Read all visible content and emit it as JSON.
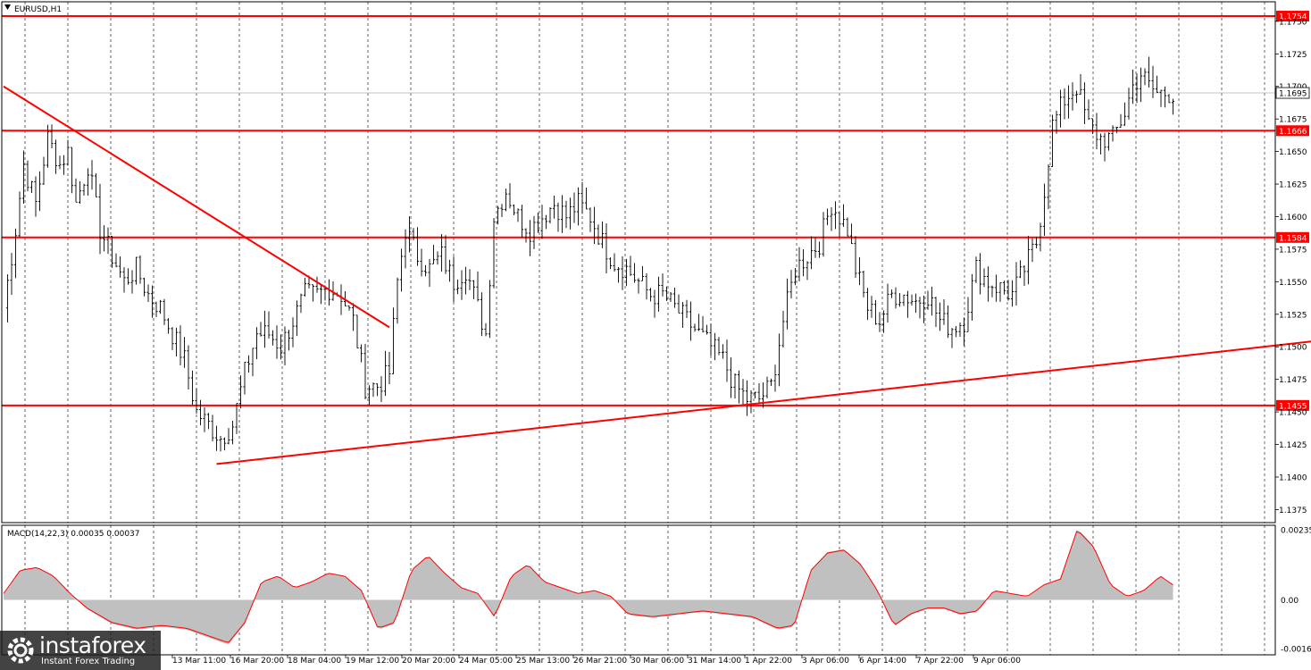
{
  "chart_title": "EURUSD,H1",
  "indicator_label": "MACD(14,22,3) 0.00035 0.00037",
  "colors": {
    "background": "#ffffff",
    "bars": "#000000",
    "levels": "#ff0000",
    "grid": "#000000",
    "macd_hist": "#c0c0c0",
    "macd_signal": "#ff0000"
  },
  "logo": {
    "name": "instaforex",
    "tagline": "Instant Forex Trading",
    "icon": "gear-logo-icon"
  },
  "chart_data": {
    "type": "candlestick",
    "symbol": "EURUSD",
    "timeframe": "H1",
    "ylim": [
      1.1365,
      1.1765
    ],
    "yticks": [
      "1.1750",
      "1.1725",
      "1.1700",
      "1.1675",
      "1.1650",
      "1.1625",
      "1.1600",
      "1.1575",
      "1.1550",
      "1.1525",
      "1.1500",
      "1.1475",
      "1.1450",
      "1.1425",
      "1.1400",
      "1.1375"
    ],
    "xticks": [
      "13 Mar 11:00",
      "16 Mar 20:00",
      "18 Mar 04:00",
      "19 Mar 12:00",
      "20 Mar 20:00",
      "24 Mar 05:00",
      "25 Mar 13:00",
      "26 Mar 21:00",
      "30 Mar 06:00",
      "31 Mar 14:00",
      "1 Apr 22:00",
      "3 Apr 06:00",
      "6 Apr 14:00",
      "7 Apr 22:00",
      "9 Apr 06:00"
    ],
    "current_price": "1.1695",
    "horizontal_levels": [
      {
        "label": "1.1754",
        "value": 1.1754
      },
      {
        "label": "1.1666",
        "value": 1.1666
      },
      {
        "label": "1.1584",
        "value": 1.1584
      },
      {
        "label": "1.1455",
        "value": 1.1455
      }
    ],
    "trendlines": [
      {
        "name": "downtrend",
        "from": [
          0,
          1.17
        ],
        "to": [
          96,
          1.1515
        ]
      },
      {
        "name": "uptrend",
        "from": [
          53,
          1.141
        ],
        "to": [
          328,
          1.1505
        ]
      }
    ],
    "price_path": [
      [
        0,
        1.153
      ],
      [
        3,
        1.159
      ],
      [
        5,
        1.164
      ],
      [
        8,
        1.161
      ],
      [
        11,
        1.166
      ],
      [
        14,
        1.164
      ],
      [
        16,
        1.165
      ],
      [
        18,
        1.161
      ],
      [
        21,
        1.164
      ],
      [
        24,
        1.159
      ],
      [
        27,
        1.157
      ],
      [
        30,
        1.155
      ],
      [
        33,
        1.156
      ],
      [
        36,
        1.154
      ],
      [
        39,
        1.153
      ],
      [
        42,
        1.151
      ],
      [
        45,
        1.149
      ],
      [
        48,
        1.145
      ],
      [
        51,
        1.144
      ],
      [
        54,
        1.143
      ],
      [
        57,
        1.144
      ],
      [
        60,
        1.148
      ],
      [
        63,
        1.151
      ],
      [
        66,
        1.151
      ],
      [
        69,
        1.15
      ],
      [
        72,
        1.152
      ],
      [
        75,
        1.154
      ],
      [
        78,
        1.154
      ],
      [
        81,
        1.1545
      ],
      [
        84,
        1.154
      ],
      [
        87,
        1.152
      ],
      [
        90,
        1.147
      ],
      [
        93,
        1.147
      ],
      [
        96,
        1.148
      ],
      [
        98,
        1.155
      ],
      [
        100,
        1.159
      ],
      [
        103,
        1.157
      ],
      [
        106,
        1.156
      ],
      [
        109,
        1.157
      ],
      [
        112,
        1.155
      ],
      [
        115,
        1.156
      ],
      [
        118,
        1.153
      ],
      [
        120,
        1.151
      ],
      [
        122,
        1.16
      ],
      [
        125,
        1.162
      ],
      [
        128,
        1.16
      ],
      [
        131,
        1.159
      ],
      [
        134,
        1.16
      ],
      [
        137,
        1.161
      ],
      [
        140,
        1.16
      ],
      [
        143,
        1.161
      ],
      [
        146,
        1.16
      ],
      [
        149,
        1.158
      ],
      [
        152,
        1.1565
      ],
      [
        155,
        1.156
      ],
      [
        158,
        1.155
      ],
      [
        161,
        1.154
      ],
      [
        164,
        1.154
      ],
      [
        167,
        1.153
      ],
      [
        170,
        1.152
      ],
      [
        173,
        1.151
      ],
      [
        176,
        1.15
      ],
      [
        179,
        1.149
      ],
      [
        182,
        1.147
      ],
      [
        185,
        1.146
      ],
      [
        188,
        1.146
      ],
      [
        191,
        1.147
      ],
      [
        194,
        1.152
      ],
      [
        197,
        1.156
      ],
      [
        200,
        1.157
      ],
      [
        203,
        1.158
      ],
      [
        206,
        1.161
      ],
      [
        208,
        1.16
      ],
      [
        210,
        1.159
      ],
      [
        212,
        1.156
      ],
      [
        215,
        1.153
      ],
      [
        218,
        1.152
      ],
      [
        221,
        1.154
      ],
      [
        224,
        1.154
      ],
      [
        227,
        1.1535
      ],
      [
        230,
        1.154
      ],
      [
        233,
        1.152
      ],
      [
        236,
        1.1515
      ],
      [
        239,
        1.152
      ],
      [
        242,
        1.156
      ],
      [
        245,
        1.155
      ],
      [
        248,
        1.1545
      ],
      [
        251,
        1.154
      ],
      [
        254,
        1.156
      ],
      [
        257,
        1.158
      ],
      [
        259,
        1.162
      ],
      [
        261,
        1.167
      ],
      [
        264,
        1.169
      ],
      [
        267,
        1.17
      ],
      [
        270,
        1.167
      ],
      [
        273,
        1.166
      ],
      [
        276,
        1.166
      ],
      [
        279,
        1.168
      ],
      [
        281,
        1.17
      ],
      [
        283,
        1.171
      ],
      [
        285,
        1.17
      ],
      [
        287,
        1.1695
      ]
    ],
    "macd": {
      "label": "MACD(14,22,3)",
      "main_value": 0.00035,
      "signal_value": 0.00037,
      "ylim": [
        -0.00163,
        0.00235
      ],
      "yticks": [
        "0.00235",
        "0.00",
        "-0.00163"
      ],
      "histogram_path": [
        [
          0,
          0.0002
        ],
        [
          4,
          0.001
        ],
        [
          8,
          0.0011
        ],
        [
          12,
          0.0008
        ],
        [
          16,
          0.0002
        ],
        [
          20,
          -0.0003
        ],
        [
          26,
          -0.0008
        ],
        [
          32,
          -0.001
        ],
        [
          38,
          -0.0009
        ],
        [
          44,
          -0.001
        ],
        [
          50,
          -0.0013
        ],
        [
          54,
          -0.0015
        ],
        [
          58,
          -0.0008
        ],
        [
          62,
          0.0006
        ],
        [
          66,
          0.0008
        ],
        [
          70,
          0.0004
        ],
        [
          74,
          0.0006
        ],
        [
          78,
          0.0009
        ],
        [
          82,
          0.0008
        ],
        [
          86,
          0.0003
        ],
        [
          90,
          -0.001
        ],
        [
          94,
          -0.0008
        ],
        [
          98,
          0.001
        ],
        [
          102,
          0.0015
        ],
        [
          106,
          0.0009
        ],
        [
          110,
          0.0004
        ],
        [
          114,
          0.0002
        ],
        [
          118,
          -0.0006
        ],
        [
          122,
          0.0008
        ],
        [
          126,
          0.0012
        ],
        [
          130,
          0.0006
        ],
        [
          134,
          0.0004
        ],
        [
          138,
          0.0002
        ],
        [
          142,
          0.0003
        ],
        [
          146,
          0.0001
        ],
        [
          150,
          -0.0005
        ],
        [
          156,
          -0.0006
        ],
        [
          162,
          -0.0005
        ],
        [
          168,
          -0.0004
        ],
        [
          174,
          -0.0005
        ],
        [
          180,
          -0.0006
        ],
        [
          186,
          -0.001
        ],
        [
          190,
          -0.0009
        ],
        [
          194,
          0.001
        ],
        [
          198,
          0.0016
        ],
        [
          202,
          0.0017
        ],
        [
          206,
          0.0012
        ],
        [
          210,
          0.0003
        ],
        [
          214,
          -0.0009
        ],
        [
          218,
          -0.0005
        ],
        [
          222,
          -0.0003
        ],
        [
          226,
          -0.0003
        ],
        [
          230,
          -0.0005
        ],
        [
          234,
          -0.0004
        ],
        [
          238,
          0.0003
        ],
        [
          242,
          0.0002
        ],
        [
          246,
          0.0001
        ],
        [
          250,
          0.0005
        ],
        [
          254,
          0.0007
        ],
        [
          258,
          0.0024
        ],
        [
          262,
          0.0018
        ],
        [
          266,
          0.0005
        ],
        [
          270,
          0.0001
        ],
        [
          274,
          0.0003
        ],
        [
          278,
          0.0008
        ],
        [
          282,
          0.0004
        ]
      ]
    }
  }
}
